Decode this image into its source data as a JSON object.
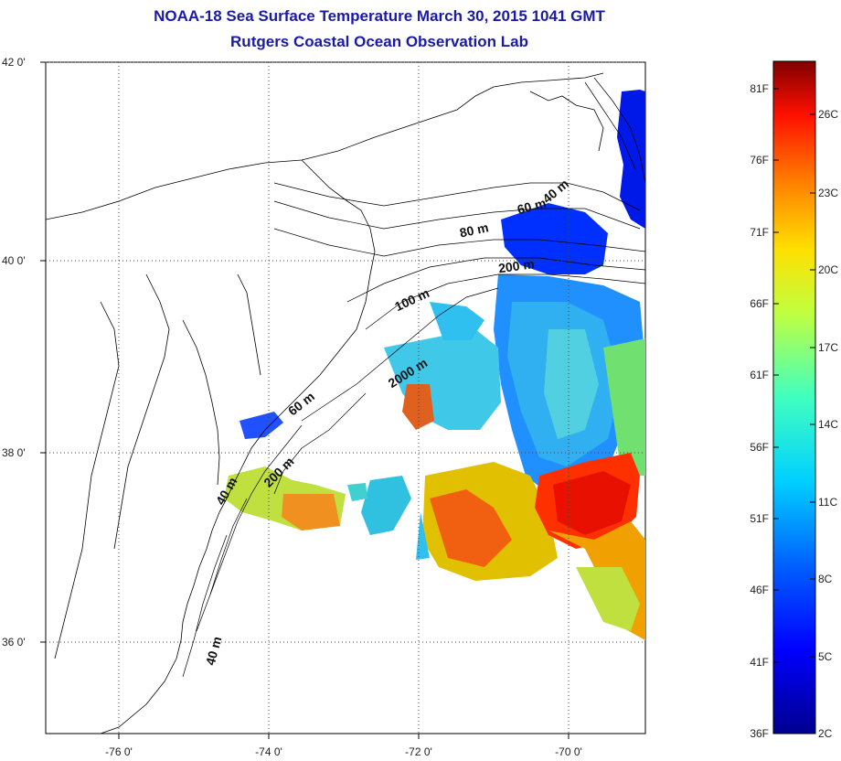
{
  "title": "NOAA-18 Sea Surface Temperature March 30, 2015 1041 GMT",
  "subtitle": "Rutgers Coastal Ocean Observation Lab",
  "map": {
    "lat_ticks": [
      "42 0'",
      "40 0'",
      "38 0'",
      "36 0'"
    ],
    "lon_ticks": [
      "-76 0'",
      "-74 0'",
      "-72 0'",
      "-70 0'"
    ],
    "gridlines": "dotted",
    "contour_labels": [
      "40 m",
      "60 m",
      "80 m",
      "100 m",
      "200 m",
      "2000 m",
      "60 m",
      "200 m",
      "40 m",
      "40 m"
    ]
  },
  "colorbar": {
    "fahrenheit": [
      "81F",
      "76F",
      "71F",
      "66F",
      "61F",
      "56F",
      "51F",
      "46F",
      "41F",
      "36F"
    ],
    "celsius": [
      "26C",
      "23C",
      "20C",
      "17C",
      "14C",
      "11C",
      "8C",
      "5C",
      "2C"
    ],
    "colors": [
      "#00008f",
      "#0000ff",
      "#0080ff",
      "#00ffff",
      "#80ff80",
      "#ffff00",
      "#ff8000",
      "#ff0000",
      "#800000"
    ]
  },
  "colors": {
    "title": "#1a1aa6",
    "land_outline": "#000000"
  }
}
